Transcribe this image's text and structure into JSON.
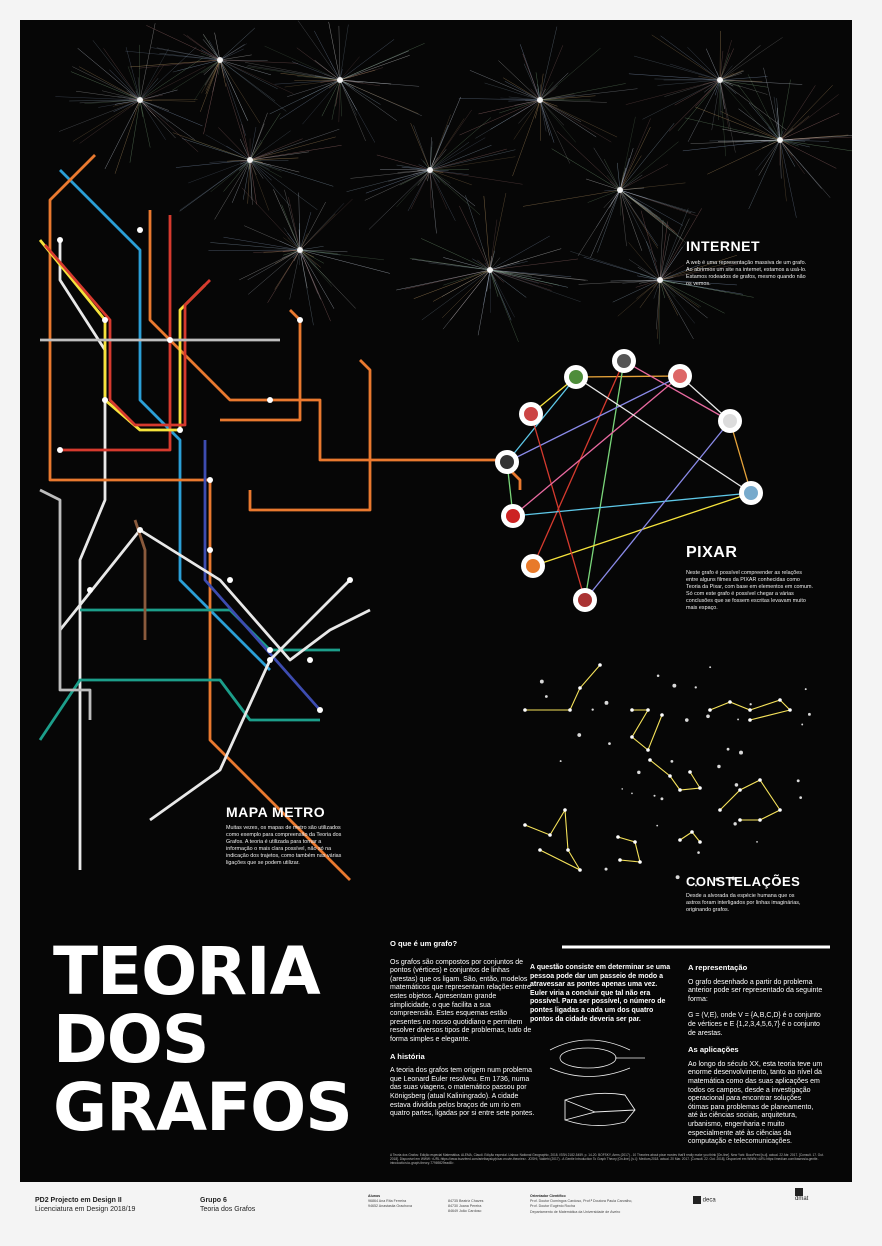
{
  "internet": {
    "title": "INTERNET",
    "body": "A web é uma representação massiva de um grafo. Ao abrirmos um site na internet, estamos a usá-lo. Estamos rodeados de grafos, mesmo quando não os vemos."
  },
  "pixar": {
    "title": "PIXAR",
    "body": "Neste grafo é possível compreender as relações entre alguns filmes da PIXAR conhecidas como Teoria da Pixar, com base em elementos em comum. Só com este grafo é possível chegar a várias conclusões que se fossem escritas levavam muito mais espaço."
  },
  "metro": {
    "title": "MAPA METRO",
    "body": "Muitas vezes, os mapas de metro são utilizados como exemplo para compreensão da Teoria dos Grafos. A teoria é utilizada para tornar a informação o mais clara possível, não só na indicação dos trajetos, como também nas várias ligações que se podem utilizar."
  },
  "constelacoes": {
    "title": "CONSTELAÇÕES",
    "body": "Desde a alvorada da espécie humana que os astros foram interligados por linhas imaginárias, originando grafos."
  },
  "main_title": [
    "TEORIA",
    "DOS",
    "GRAFOS"
  ],
  "que_e": {
    "heading": "O que é um grafo?",
    "body": "Os grafos são compostos por conjuntos de pontos (vértices) e conjuntos de linhas (arestas) que os ligam. São, então, modelos matemáticos que representam relações entre estes objetos. Apresentam grande simplicidade, o que facilita a sua compreensão. Estes esquemas estão presentes no nosso quotidiano e permitem resolver diversos tipos de problemas, tudo de forma simples e elegante."
  },
  "historia": {
    "heading": "A história",
    "body": "A teoria dos grafos tem origem num problema que Leonard Euler resolveu. Em 1736, numa das suas viagens, o matemático passou por Königsberg (atual Kaliningrado). A cidade estava dividida pelos braços de um rio em quatro partes, ligadas por si entre sete pontes."
  },
  "questao": {
    "body": "A questão consiste em determinar se uma pessoa pode dar um passeio de modo a atravessar as pontes apenas uma vez. Euler viria a concluir que tal não era possível. Para ser possível, o número de pontes ligadas a cada um dos quatro pontos da cidade deveria ser par."
  },
  "representacao": {
    "heading": "A representação",
    "body1": "O grafo desenhado a partir do problema anterior pode ser representado da seguinte forma:",
    "body2": "G = (V,E), onde V = {A,B,C,D} é o conjunto de vértices e E {1,2,3,4,5,6,7} é o conjunto de arestas."
  },
  "aplicacoes": {
    "heading": "As aplicações",
    "body": "Ao longo do século XX, esta teoria teve um enorme desenvolvimento, tanto ao nível da matemática como das suas aplicações em todos os campos, desde a investigação operacional para encontrar soluções ótimas para problemas de planeamento, até às ciências sociais, arquitetura, urbanismo, engenharia e muito especialmente até às ciências da computação e telecomunicações."
  },
  "references": "A Teoria dos Grafos: Edição especial Matemática. ALEMA, Claudi. Edição especial. Lisboa: National Geographic, 2018. ISSN 2182-5459. p. 14-20. BOFSKY, Arms (2017) - 10 Theories about pixar movies that'll really make you think [On-line]. New York: BuzzFeed [s.d]. actual. 22 Abr. 2017. [Consult. 17. Out. 2018]. Disponível em WWW: <URL:https://www.buzzfeed.com/arielbaysky/pixar-movie-theories>. JOSHI, Vaidehi (2017) - A Gentle Introduction To Graph Theory [On-line]. [s.l.]: Medium,2018. actual. 20 Mar. 2017. [Consult. 22. Out. 2018]. Disponível em WWW:<URL:https://medium.com/basecs/a-gentle-introduction-to-graph-theory-77969829ead8>.",
  "footer": {
    "course_line1": "PD2 Projecto em Design II",
    "course_line2": "Licenciatura em Design 2018/19",
    "group_line1": "Grupo 6",
    "group_line2": "Teoria dos Grafos",
    "alunos_label": "Alunos",
    "alunos": [
      "96864   Ana Rita Ferreira",
      "94652   Anastasiia Grachova",
      "84735   Beatriz Chaves",
      "84730   Joana Pereira",
      "84649   João Cardoso"
    ],
    "orientador_label": "Orientador Científico",
    "orientador": [
      "Prof. Doutor Domingos Cardoso, Prof.ª Doutora Paula Carvalho,",
      "Prof. Doutor Eugénio Rocha",
      "Departamento de Matemática da Universidade de Aveiro"
    ],
    "logo1": "deca",
    "logo2": "dmat"
  },
  "colors": {
    "background": "#060606",
    "star": "#f5e25a",
    "metro": [
      "#e8e8e8",
      "#2b9fd6",
      "#e9792f",
      "#d63a2e",
      "#f6e33c",
      "#1c9e8a",
      "#3d4cb0",
      "#8a5a3c",
      "#bdbdbd"
    ]
  }
}
